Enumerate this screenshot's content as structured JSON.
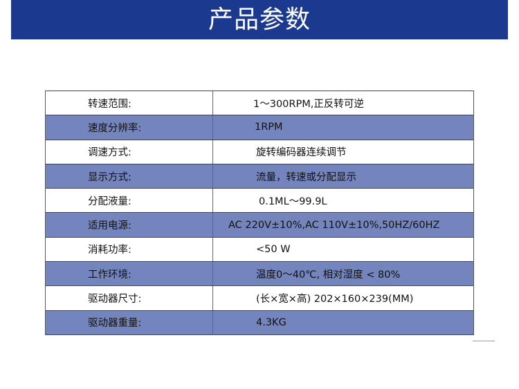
{
  "header": {
    "title": "产品参数"
  },
  "colors": {
    "banner": "#1c3990",
    "alt_row": "#7484bc"
  },
  "specs": [
    {
      "label": "转速范围:",
      "value": "1～300RPM,正反转可逆"
    },
    {
      "label": "速度分辨率:",
      "value": "1RPM"
    },
    {
      "label": "调速方式:",
      "value": "旋转编码器连续调节"
    },
    {
      "label": "显示方式:",
      "value": "流量，转速或分配显示"
    },
    {
      "label": "分配液量:",
      "value": "0.1ML～99.9L"
    },
    {
      "label": "适用电源:",
      "value": "AC 220V±10%,AC 110V±10%,50HZ/60HZ"
    },
    {
      "label": "消耗功率:",
      "value": "<50 W"
    },
    {
      "label": "工作环境:",
      "value": "温度0～40℃, 相对湿度 < 80%"
    },
    {
      "label": "驱动器尺寸:",
      "value": "(长×宽×高) 202×160×239(MM)"
    },
    {
      "label": "驱动器重量:",
      "value": "4.3KG"
    }
  ]
}
